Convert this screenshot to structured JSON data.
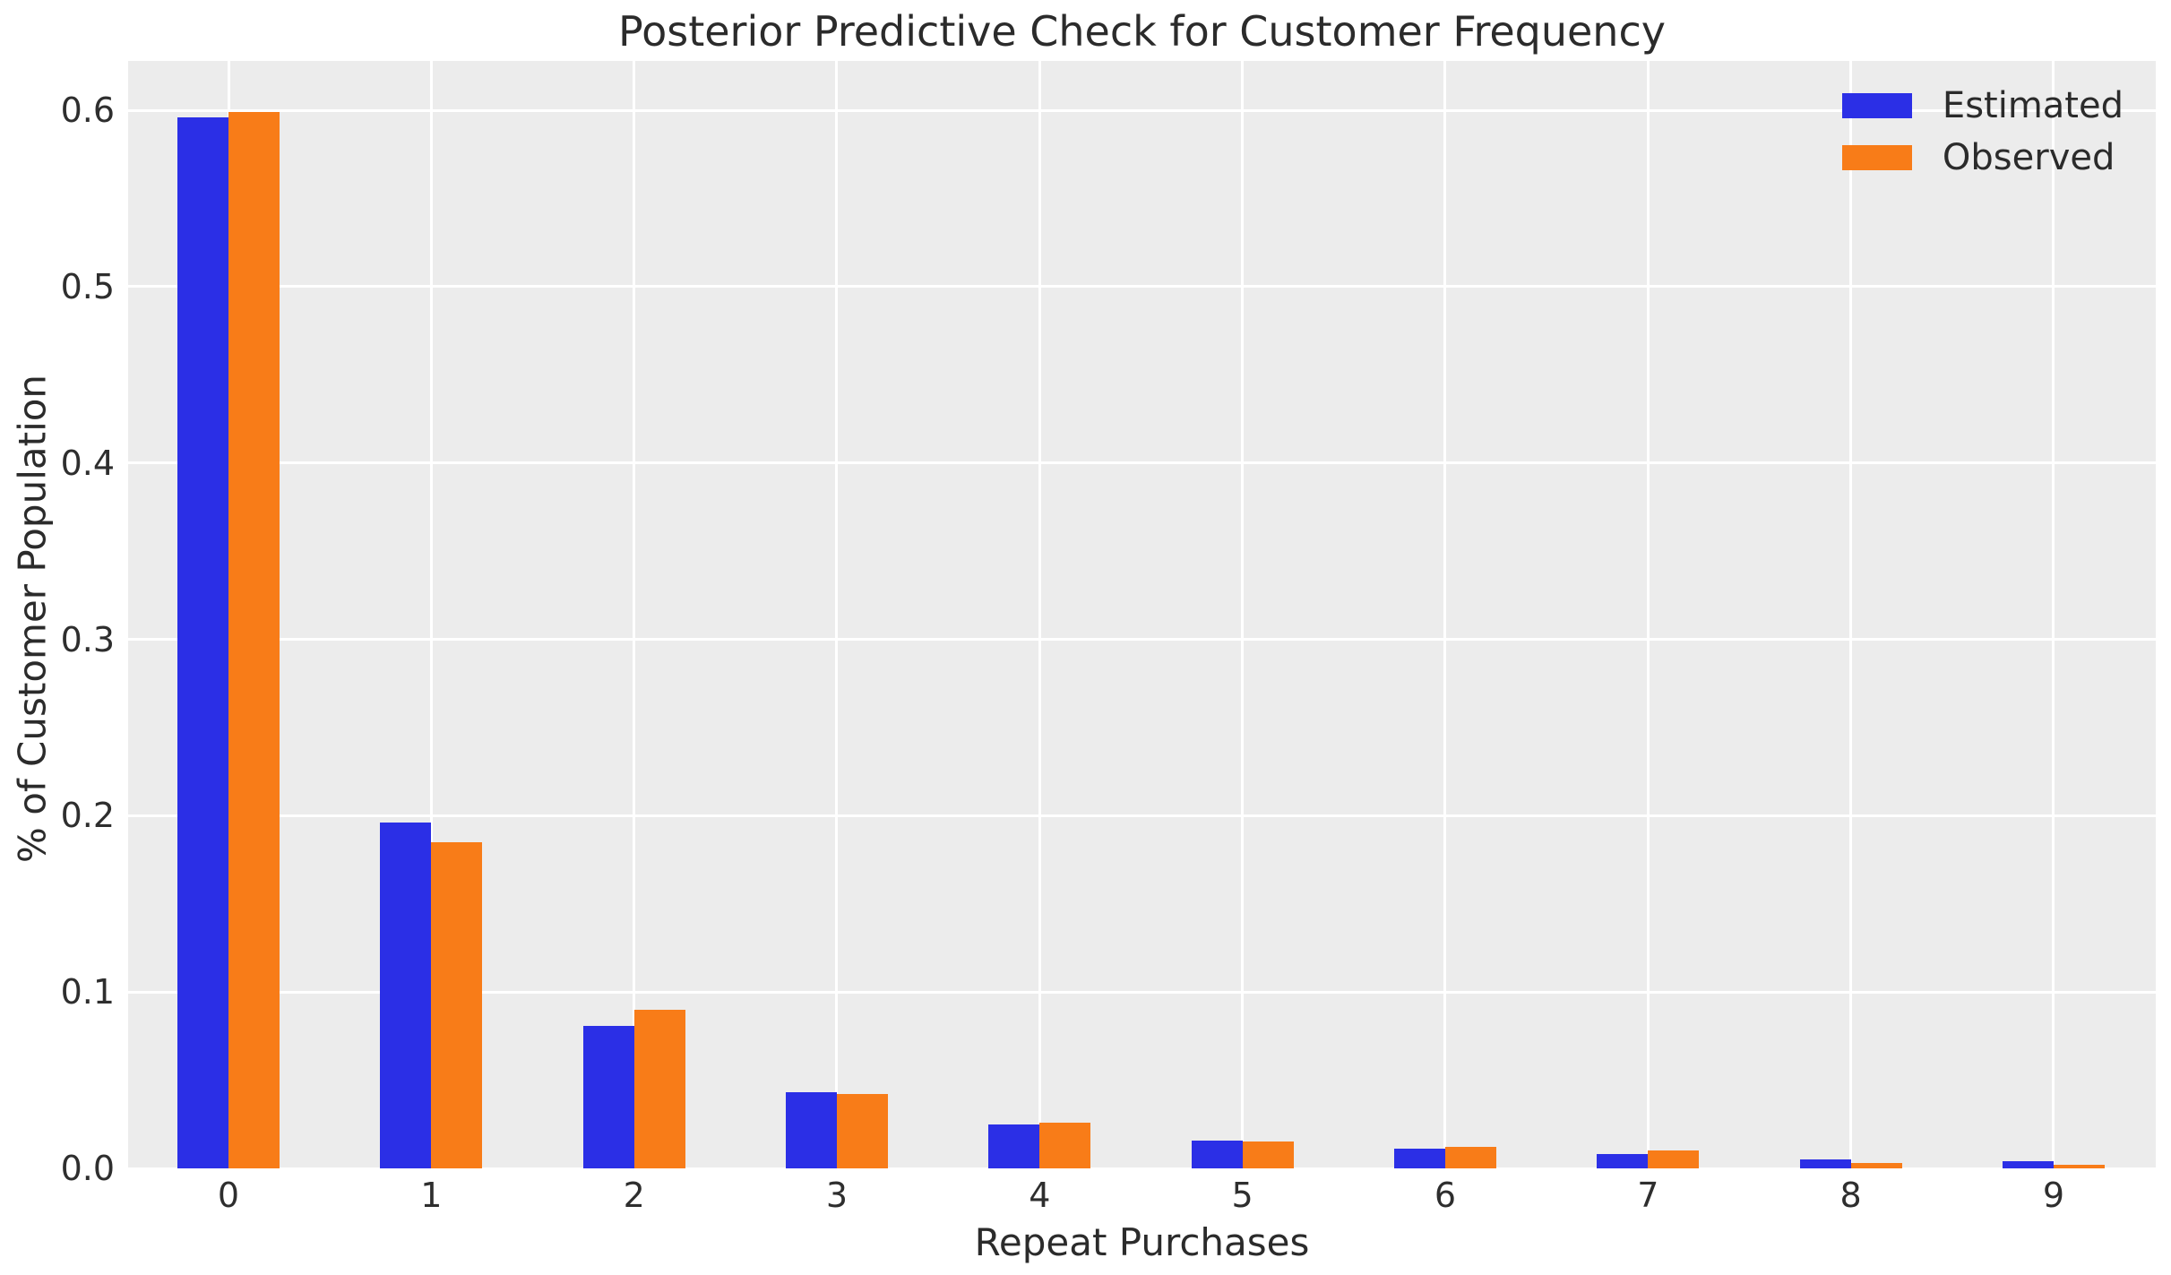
{
  "chart_data": {
    "type": "bar",
    "title": "Posterior Predictive Check for Customer Frequency",
    "xlabel": "Repeat Purchases",
    "ylabel": "% of Customer Population",
    "categories": [
      "0",
      "1",
      "2",
      "3",
      "4",
      "5",
      "6",
      "7",
      "8",
      "9"
    ],
    "series": [
      {
        "name": "Estimated",
        "color": "#2B2FE6",
        "values": [
          0.596,
          0.196,
          0.081,
          0.043,
          0.025,
          0.016,
          0.011,
          0.008,
          0.005,
          0.004
        ]
      },
      {
        "name": "Observed",
        "color": "#F87C18",
        "values": [
          0.599,
          0.185,
          0.09,
          0.042,
          0.026,
          0.015,
          0.012,
          0.01,
          0.003,
          0.002
        ]
      }
    ],
    "yticks": [
      "0.0",
      "0.1",
      "0.2",
      "0.3",
      "0.4",
      "0.5",
      "0.6"
    ],
    "ylim": [
      0,
      0.628
    ],
    "grid": true,
    "legend_position": "upper right",
    "plot_background": "#ECECEC",
    "grid_color": "#FFFFFF",
    "text_color": "#2B2B2B"
  }
}
